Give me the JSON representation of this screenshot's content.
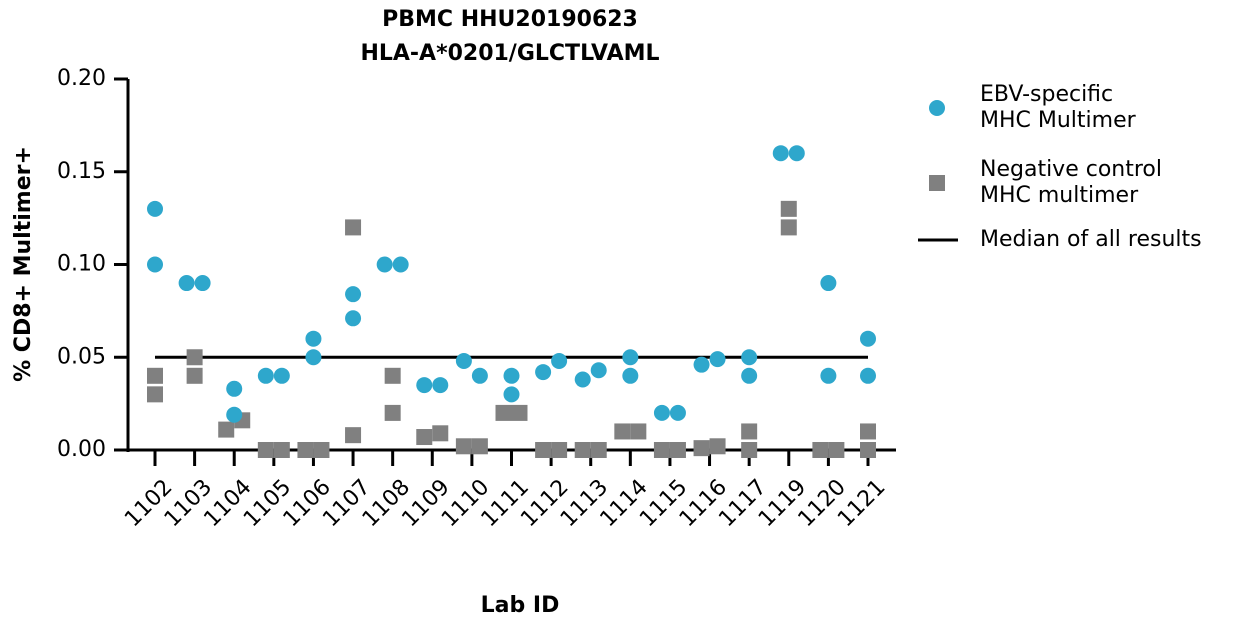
{
  "chart_data": {
    "type": "dot",
    "title": "PBMC HHU20190623",
    "subtitle": "HLA-A*0201/GLCTLVAML",
    "x_label": "Lab ID",
    "y_label": "% CD8+ Multimer+",
    "categories": [
      "1102",
      "1103",
      "1104",
      "1105",
      "1106",
      "1107",
      "1108",
      "1109",
      "1110",
      "1111",
      "1112",
      "1113",
      "1114",
      "1115",
      "1116",
      "1117",
      "1119",
      "1120",
      "1121"
    ],
    "series": [
      {
        "name": "EBV-specific\nMHC Multimer",
        "color": "#2ea7cc",
        "marker": "circle",
        "values": [
          [
            0.13,
            0.1
          ],
          [
            0.09,
            0.09
          ],
          [
            0.033,
            0.019
          ],
          [
            0.04,
            0.04
          ],
          [
            0.06,
            0.05
          ],
          [
            0.084,
            0.071
          ],
          [
            0.1,
            0.1
          ],
          [
            0.035,
            0.035
          ],
          [
            0.048,
            0.04
          ],
          [
            0.04,
            0.03
          ],
          [
            0.042,
            0.048
          ],
          [
            0.038,
            0.043
          ],
          [
            0.05,
            0.04
          ],
          [
            0.02,
            0.02
          ],
          [
            0.046,
            0.049
          ],
          [
            0.05,
            0.04
          ],
          [
            0.16,
            0.16
          ],
          [
            0.09,
            0.04
          ],
          [
            0.06,
            0.04
          ]
        ]
      },
      {
        "name": "Negative control\nMHC multimer",
        "color": "#808080",
        "marker": "square",
        "values": [
          [
            0.04,
            0.03
          ],
          [
            0.05,
            0.04
          ],
          [
            0.011,
            0.016
          ],
          [
            0,
            0
          ],
          [
            0,
            0
          ],
          [
            0.12,
            0.008
          ],
          [
            0.04,
            0.02
          ],
          [
            0.007,
            0.009
          ],
          [
            0.002,
            0.002
          ],
          [
            0.02,
            0.02
          ],
          [
            0,
            0
          ],
          [
            0,
            0
          ],
          [
            0.01,
            0.01
          ],
          [
            0,
            0
          ],
          [
            0.001,
            0.002
          ],
          [
            0.01,
            0
          ],
          [
            0.13,
            0.12
          ],
          [
            0,
            0
          ],
          [
            0.01,
            0
          ]
        ]
      }
    ],
    "median": {
      "name": "Median of all results",
      "value": 0.05,
      "color": "#000000"
    },
    "ylim": [
      0,
      0.2
    ],
    "yticks": [
      {
        "value": 0,
        "label": "0.00"
      },
      {
        "value": 0.05,
        "label": "0.05"
      },
      {
        "value": 0.1,
        "label": "0.10"
      },
      {
        "value": 0.15,
        "label": "0.15"
      },
      {
        "value": 0.2,
        "label": "0.20"
      }
    ],
    "legend": "right",
    "grid": false
  }
}
